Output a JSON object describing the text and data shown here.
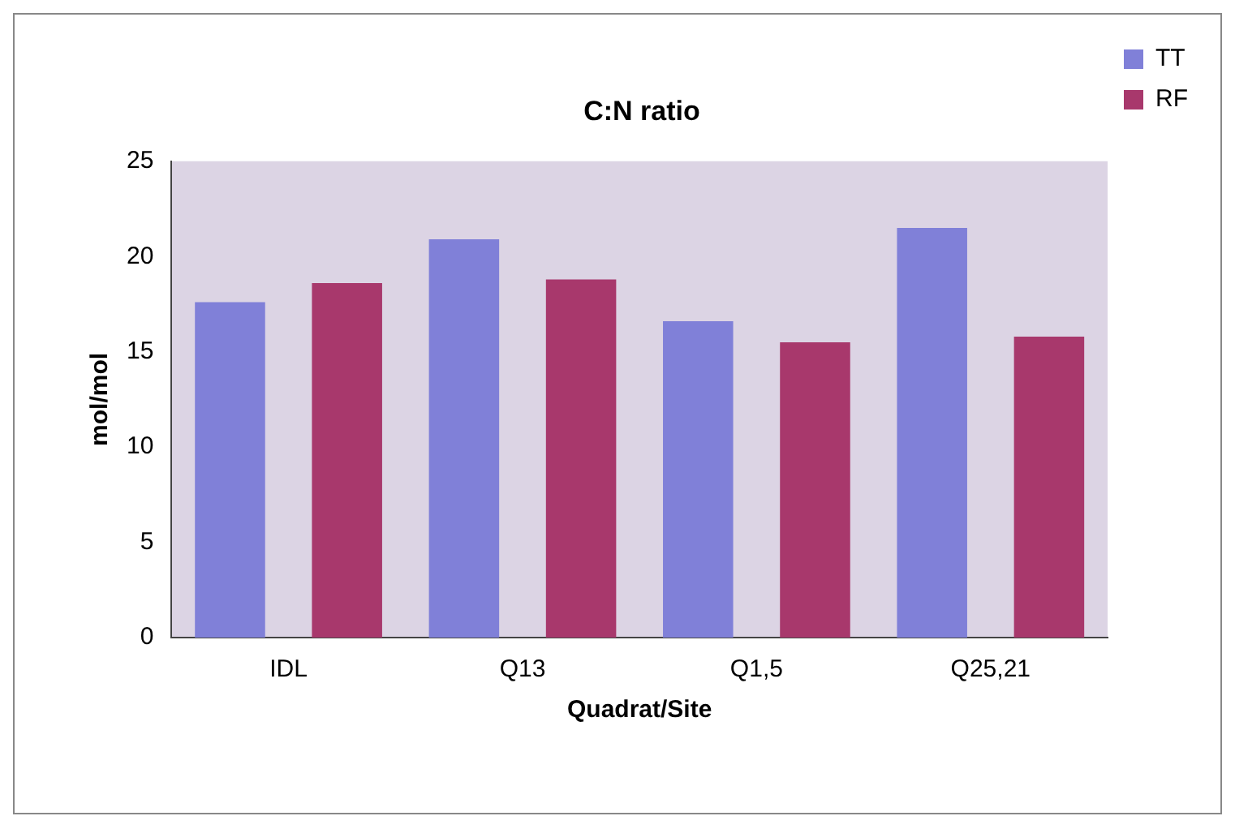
{
  "chart_data": {
    "type": "bar",
    "title": "C:N ratio",
    "xlabel": "Quadrat/Site",
    "ylabel": "mol/mol",
    "categories": [
      "IDL",
      "Q13",
      "Q1,5",
      "Q25,21"
    ],
    "series": [
      {
        "name": "TT",
        "color": "#8080d8",
        "values": [
          17.6,
          20.9,
          16.6,
          21.5
        ]
      },
      {
        "name": "RF",
        "color": "#a8386c",
        "values": [
          18.6,
          18.8,
          15.5,
          15.8
        ]
      }
    ],
    "ylim": [
      0,
      25
    ],
    "yticks": [
      0,
      5,
      10,
      15,
      20,
      25
    ],
    "grid": false,
    "legend": "top right"
  }
}
